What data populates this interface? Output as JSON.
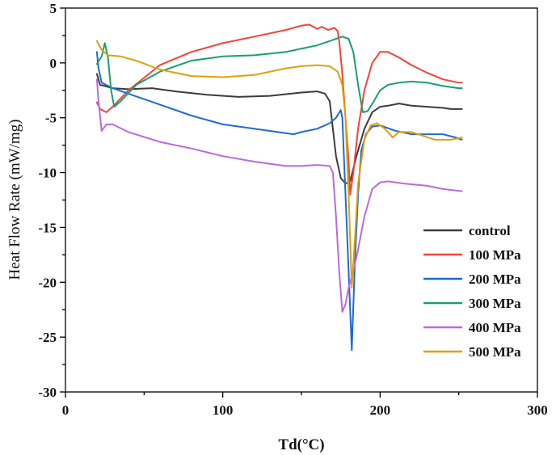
{
  "chart_data": {
    "type": "line",
    "title": "",
    "xlabel": "Td(°C)",
    "ylabel": "Heat Flow Rate (mW/mg)",
    "xlim": [
      0,
      300
    ],
    "ylim": [
      -30,
      5
    ],
    "xticks": [
      0,
      100,
      200,
      300
    ],
    "yticks": [
      5,
      0,
      -5,
      -10,
      -15,
      -20,
      -25,
      -30
    ],
    "xtick_labels": [
      "0",
      "100",
      "200",
      "300"
    ],
    "ytick_labels": [
      "5",
      "0",
      "-5",
      "-10",
      "-15",
      "-20",
      "-25",
      "-30"
    ],
    "legend_position": "right",
    "series": [
      {
        "name": "control",
        "color": "#3c3c3c",
        "points": [
          [
            20,
            -1.0
          ],
          [
            22,
            -2.0
          ],
          [
            25,
            -2.1
          ],
          [
            30,
            -2.3
          ],
          [
            40,
            -2.4
          ],
          [
            55,
            -2.3
          ],
          [
            70,
            -2.6
          ],
          [
            90,
            -2.9
          ],
          [
            110,
            -3.1
          ],
          [
            130,
            -3.0
          ],
          [
            150,
            -2.7
          ],
          [
            160,
            -2.6
          ],
          [
            165,
            -2.8
          ],
          [
            168,
            -3.5
          ],
          [
            170,
            -6.0
          ],
          [
            172,
            -8.5
          ],
          [
            175,
            -10.5
          ],
          [
            178,
            -11.0
          ],
          [
            181,
            -10.8
          ],
          [
            185,
            -8.5
          ],
          [
            190,
            -6.0
          ],
          [
            195,
            -4.5
          ],
          [
            200,
            -4.0
          ],
          [
            205,
            -3.9
          ],
          [
            212,
            -3.7
          ],
          [
            220,
            -3.9
          ],
          [
            230,
            -4.0
          ],
          [
            240,
            -4.1
          ],
          [
            245,
            -4.2
          ],
          [
            252,
            -4.2
          ]
        ]
      },
      {
        "name": "100 MPa",
        "color": "#f0443a",
        "points": [
          [
            20,
            -3.6
          ],
          [
            22,
            -4.2
          ],
          [
            26,
            -4.5
          ],
          [
            30,
            -4.0
          ],
          [
            40,
            -2.5
          ],
          [
            60,
            -0.2
          ],
          [
            80,
            1.0
          ],
          [
            100,
            1.8
          ],
          [
            120,
            2.4
          ],
          [
            140,
            3.0
          ],
          [
            150,
            3.4
          ],
          [
            155,
            3.5
          ],
          [
            160,
            3.1
          ],
          [
            163,
            3.3
          ],
          [
            167,
            3.0
          ],
          [
            171,
            3.2
          ],
          [
            173,
            2.9
          ],
          [
            174,
            2.0
          ],
          [
            176,
            -1.0
          ],
          [
            178,
            -5.0
          ],
          [
            180,
            -9.0
          ],
          [
            181,
            -12.0
          ],
          [
            183,
            -10.0
          ],
          [
            186,
            -6.0
          ],
          [
            190,
            -2.5
          ],
          [
            195,
            0.0
          ],
          [
            200,
            1.0
          ],
          [
            205,
            1.0
          ],
          [
            212,
            0.5
          ],
          [
            220,
            -0.2
          ],
          [
            230,
            -0.9
          ],
          [
            240,
            -1.5
          ],
          [
            250,
            -1.8
          ],
          [
            252,
            -1.8
          ]
        ]
      },
      {
        "name": "200 MPa",
        "color": "#1f6bd1",
        "points": [
          [
            20,
            1.0
          ],
          [
            21,
            -0.5
          ],
          [
            23,
            -1.8
          ],
          [
            30,
            -2.3
          ],
          [
            40,
            -2.8
          ],
          [
            60,
            -3.8
          ],
          [
            80,
            -4.8
          ],
          [
            100,
            -5.6
          ],
          [
            120,
            -6.0
          ],
          [
            140,
            -6.4
          ],
          [
            145,
            -6.5
          ],
          [
            150,
            -6.3
          ],
          [
            160,
            -6.0
          ],
          [
            168,
            -5.5
          ],
          [
            172,
            -5.0
          ],
          [
            175,
            -4.3
          ],
          [
            176,
            -5.0
          ],
          [
            178,
            -12.0
          ],
          [
            180,
            -19.0
          ],
          [
            182,
            -26.2
          ],
          [
            184,
            -18.0
          ],
          [
            186,
            -12.0
          ],
          [
            188,
            -8.0
          ],
          [
            191,
            -6.5
          ],
          [
            195,
            -5.8
          ],
          [
            200,
            -5.7
          ],
          [
            210,
            -6.2
          ],
          [
            220,
            -6.5
          ],
          [
            240,
            -6.5
          ],
          [
            248,
            -6.8
          ],
          [
            252,
            -7.0
          ]
        ]
      },
      {
        "name": "300 MPa",
        "color": "#1c9e6e",
        "points": [
          [
            20,
            -0.1
          ],
          [
            23,
            0.6
          ],
          [
            25,
            1.8
          ],
          [
            27,
            0.5
          ],
          [
            29,
            -2.5
          ],
          [
            31,
            -4.0
          ],
          [
            35,
            -3.5
          ],
          [
            45,
            -2.0
          ],
          [
            60,
            -0.8
          ],
          [
            80,
            0.2
          ],
          [
            100,
            0.6
          ],
          [
            120,
            0.7
          ],
          [
            140,
            1.0
          ],
          [
            160,
            1.6
          ],
          [
            170,
            2.1
          ],
          [
            176,
            2.4
          ],
          [
            180,
            2.2
          ],
          [
            183,
            1.0
          ],
          [
            186,
            -2.0
          ],
          [
            189,
            -4.5
          ],
          [
            192,
            -4.4
          ],
          [
            196,
            -3.5
          ],
          [
            200,
            -2.5
          ],
          [
            205,
            -2.0
          ],
          [
            212,
            -1.8
          ],
          [
            220,
            -1.7
          ],
          [
            230,
            -1.8
          ],
          [
            240,
            -2.1
          ],
          [
            250,
            -2.3
          ],
          [
            252,
            -2.3
          ]
        ]
      },
      {
        "name": "400 MPa",
        "color": "#b96ae0",
        "points": [
          [
            20,
            -1.5
          ],
          [
            21,
            -3.5
          ],
          [
            23,
            -6.2
          ],
          [
            26,
            -5.6
          ],
          [
            30,
            -5.6
          ],
          [
            40,
            -6.3
          ],
          [
            60,
            -7.2
          ],
          [
            80,
            -7.8
          ],
          [
            100,
            -8.5
          ],
          [
            120,
            -9.0
          ],
          [
            140,
            -9.4
          ],
          [
            150,
            -9.4
          ],
          [
            160,
            -9.3
          ],
          [
            168,
            -9.4
          ],
          [
            170,
            -10.0
          ],
          [
            172,
            -14.0
          ],
          [
            174,
            -19.0
          ],
          [
            176,
            -22.7
          ],
          [
            178,
            -22.0
          ],
          [
            180,
            -20.5
          ],
          [
            183,
            -19.0
          ],
          [
            186,
            -17.0
          ],
          [
            190,
            -14.0
          ],
          [
            195,
            -11.5
          ],
          [
            200,
            -10.9
          ],
          [
            205,
            -10.8
          ],
          [
            215,
            -11.0
          ],
          [
            230,
            -11.2
          ],
          [
            240,
            -11.5
          ],
          [
            252,
            -11.7
          ]
        ]
      },
      {
        "name": "500 MPa",
        "color": "#dea00c",
        "points": [
          [
            20,
            2.0
          ],
          [
            23,
            1.2
          ],
          [
            27,
            0.7
          ],
          [
            35,
            0.6
          ],
          [
            45,
            0.2
          ],
          [
            60,
            -0.6
          ],
          [
            80,
            -1.2
          ],
          [
            100,
            -1.3
          ],
          [
            120,
            -1.1
          ],
          [
            140,
            -0.5
          ],
          [
            150,
            -0.3
          ],
          [
            160,
            -0.2
          ],
          [
            168,
            -0.3
          ],
          [
            173,
            -0.8
          ],
          [
            176,
            -2.0
          ],
          [
            178,
            -5.0
          ],
          [
            180,
            -12.0
          ],
          [
            182,
            -20.5
          ],
          [
            184,
            -16.0
          ],
          [
            186,
            -11.0
          ],
          [
            190,
            -7.0
          ],
          [
            194,
            -5.7
          ],
          [
            198,
            -5.5
          ],
          [
            203,
            -6.0
          ],
          [
            208,
            -6.8
          ],
          [
            212,
            -6.3
          ],
          [
            220,
            -6.3
          ],
          [
            235,
            -7.0
          ],
          [
            245,
            -7.0
          ],
          [
            252,
            -6.8
          ]
        ]
      }
    ]
  }
}
